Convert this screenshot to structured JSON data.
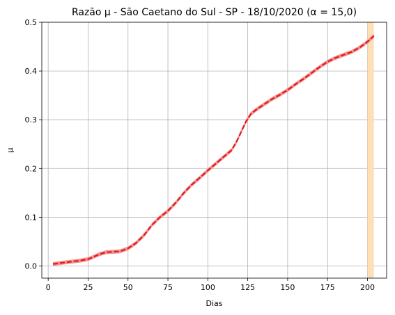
{
  "chart_data": {
    "type": "line",
    "title": "Razão µ - São Caetano do Sul - SP - 18/10/2020 (α = 15,0)",
    "xlabel": "Dias",
    "ylabel": "µ",
    "xlim": [
      -4,
      212
    ],
    "ylim": [
      -0.025,
      0.5
    ],
    "xticks": [
      0,
      25,
      50,
      75,
      100,
      125,
      150,
      175,
      200
    ],
    "xtick_labels": [
      "0",
      "25",
      "50",
      "75",
      "100",
      "125",
      "150",
      "175",
      "200"
    ],
    "yticks": [
      0.0,
      0.1,
      0.2,
      0.3,
      0.4,
      0.5
    ],
    "ytick_labels": [
      "0.0",
      "0.1",
      "0.2",
      "0.3",
      "0.4",
      "0.5"
    ],
    "grid": true,
    "highlight_band": {
      "x0": 200,
      "x1": 204,
      "color": "#ffdfb5"
    },
    "series": [
      {
        "color": "#e41a1c",
        "band_color": "#f08080",
        "x": [
          3,
          10,
          15,
          20,
          25,
          28,
          32,
          36,
          40,
          45,
          50,
          55,
          60,
          65,
          70,
          75,
          80,
          85,
          90,
          95,
          100,
          105,
          110,
          115,
          118,
          121,
          124,
          127,
          130,
          135,
          140,
          145,
          150,
          155,
          160,
          165,
          170,
          175,
          180,
          185,
          190,
          195,
          200,
          204
        ],
        "values": [
          0.004,
          0.007,
          0.009,
          0.011,
          0.014,
          0.018,
          0.024,
          0.028,
          0.029,
          0.03,
          0.036,
          0.047,
          0.063,
          0.084,
          0.1,
          0.113,
          0.13,
          0.15,
          0.167,
          0.181,
          0.196,
          0.21,
          0.224,
          0.238,
          0.255,
          0.276,
          0.297,
          0.312,
          0.32,
          0.331,
          0.342,
          0.351,
          0.361,
          0.373,
          0.384,
          0.396,
          0.408,
          0.419,
          0.427,
          0.433,
          0.439,
          0.448,
          0.46,
          0.472
        ],
        "band_halfwidth": 0.004
      }
    ]
  }
}
